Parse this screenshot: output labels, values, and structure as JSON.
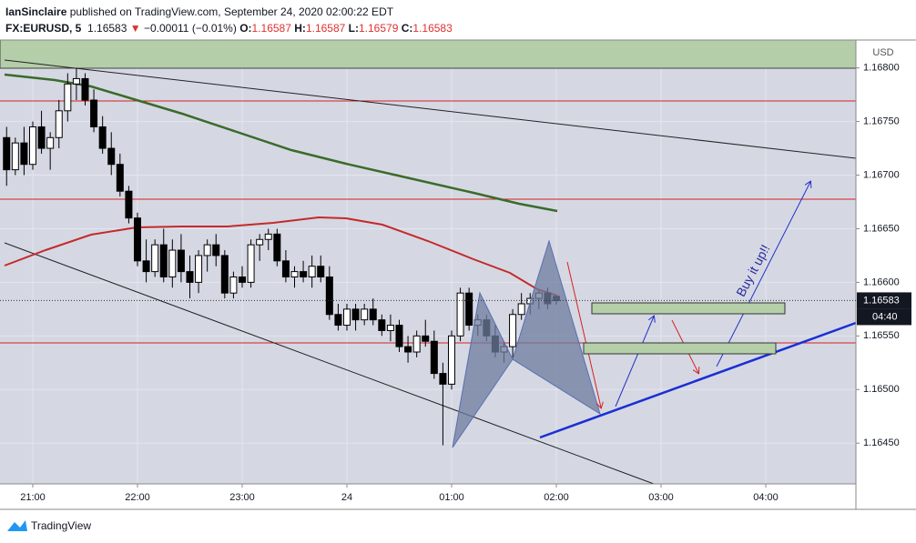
{
  "chart_data": {
    "type": "candlestick",
    "author": "IanSinclaire",
    "subtitle": "published on TradingView.com, September 24, 2020 02:00:22 EDT",
    "symbol": "FX:EURUSD, 5",
    "change_arrow": "▼",
    "change": "−0.00011 (−0.01%)",
    "ohlc_labels": [
      "O:",
      "H:",
      "L:",
      "C:"
    ],
    "currency": "USD",
    "countdown": "04:40",
    "annotation": "Buy it up!!",
    "brand": "TradingView",
    "up_color": "#ffffff",
    "down_color": "#000000",
    "grid": true,
    "x": [
      20.75,
      20.8333,
      20.9167,
      21,
      21.0833,
      21.1667,
      21.25,
      21.3333,
      21.4167,
      21.5,
      21.5833,
      21.6667,
      21.75,
      21.8333,
      21.9167,
      22,
      22.0833,
      22.1667,
      22.25,
      22.3333,
      22.4167,
      22.5,
      22.5833,
      22.6667,
      22.75,
      22.8333,
      22.9167,
      23,
      23.0833,
      23.1667,
      23.25,
      23.3333,
      23.4167,
      23.5,
      23.5833,
      23.6667,
      23.75,
      23.8333,
      23.9167,
      24,
      24.0833,
      24.1667,
      24.25,
      24.3333,
      24.4167,
      24.5,
      24.5833,
      24.6667,
      24.75,
      24.8333,
      24.9167,
      25,
      25.0833,
      25.1667,
      25.25,
      25.3333,
      25.4167,
      25.5,
      25.5833,
      25.6667,
      25.75,
      25.8333,
      25.9167,
      26
    ],
    "open": [
      1.16735,
      1.16705,
      1.1673,
      1.1671,
      1.16745,
      1.16725,
      1.16735,
      1.1676,
      1.16785,
      1.1679,
      1.1677,
      1.16745,
      1.16725,
      1.1671,
      1.16685,
      1.1666,
      1.1662,
      1.1661,
      1.16635,
      1.16605,
      1.1663,
      1.1661,
      1.166,
      1.16625,
      1.16635,
      1.16625,
      1.1659,
      1.16605,
      1.166,
      1.16635,
      1.1664,
      1.16645,
      1.1662,
      1.16605,
      1.1661,
      1.16605,
      1.16615,
      1.16605,
      1.1657,
      1.1656,
      1.16575,
      1.16565,
      1.16575,
      1.16565,
      1.16555,
      1.1656,
      1.1654,
      1.16535,
      1.1655,
      1.16545,
      1.16515,
      1.16505,
      1.1655,
      1.1659,
      1.1656,
      1.16565,
      1.1655,
      1.16535,
      1.1654,
      1.1657,
      1.1658,
      1.16585,
      1.1659,
      1.16587
    ],
    "high": [
      1.16745,
      1.16735,
      1.16745,
      1.1675,
      1.1676,
      1.1674,
      1.1677,
      1.16795,
      1.168,
      1.16795,
      1.1678,
      1.16755,
      1.1674,
      1.1672,
      1.1669,
      1.16665,
      1.1664,
      1.1664,
      1.1665,
      1.1664,
      1.16645,
      1.16625,
      1.1663,
      1.1664,
      1.16645,
      1.1663,
      1.1661,
      1.16615,
      1.1664,
      1.16645,
      1.1665,
      1.1665,
      1.1663,
      1.16615,
      1.1662,
      1.16625,
      1.16625,
      1.16615,
      1.1658,
      1.1658,
      1.1658,
      1.1658,
      1.16585,
      1.1657,
      1.1657,
      1.16565,
      1.1655,
      1.16555,
      1.16565,
      1.16555,
      1.16525,
      1.16555,
      1.16595,
      1.16595,
      1.1657,
      1.1657,
      1.1656,
      1.16545,
      1.16575,
      1.1659,
      1.1659,
      1.16592,
      1.16595,
      1.16587
    ],
    "low": [
      1.1669,
      1.167,
      1.167,
      1.16705,
      1.1672,
      1.16705,
      1.16725,
      1.1675,
      1.1677,
      1.16765,
      1.1674,
      1.1672,
      1.167,
      1.1668,
      1.16655,
      1.16615,
      1.166,
      1.16605,
      1.166,
      1.16595,
      1.166,
      1.16585,
      1.1659,
      1.1661,
      1.16615,
      1.16585,
      1.16585,
      1.16595,
      1.16595,
      1.1662,
      1.1663,
      1.16615,
      1.166,
      1.16595,
      1.166,
      1.16595,
      1.166,
      1.16565,
      1.16555,
      1.16555,
      1.16555,
      1.1656,
      1.1656,
      1.1655,
      1.16545,
      1.16535,
      1.16525,
      1.1653,
      1.1654,
      1.1651,
      1.16448,
      1.165,
      1.16545,
      1.16555,
      1.1655,
      1.16545,
      1.1653,
      1.16525,
      1.1653,
      1.16565,
      1.1657,
      1.16575,
      1.16575,
      1.16579
    ],
    "close": [
      1.16705,
      1.1673,
      1.1671,
      1.16745,
      1.16725,
      1.16735,
      1.1676,
      1.16785,
      1.1679,
      1.1677,
      1.16745,
      1.16725,
      1.1671,
      1.16685,
      1.1666,
      1.1662,
      1.1661,
      1.16635,
      1.16605,
      1.1663,
      1.1661,
      1.166,
      1.16625,
      1.16635,
      1.16625,
      1.1659,
      1.16605,
      1.166,
      1.16635,
      1.1664,
      1.16645,
      1.1662,
      1.16605,
      1.1661,
      1.16605,
      1.16615,
      1.16605,
      1.1657,
      1.1656,
      1.16575,
      1.16565,
      1.16575,
      1.16565,
      1.16555,
      1.1656,
      1.1654,
      1.16535,
      1.1655,
      1.16545,
      1.16515,
      1.16505,
      1.1655,
      1.1659,
      1.1656,
      1.16565,
      1.1655,
      1.16535,
      1.1654,
      1.1657,
      1.1658,
      1.16585,
      1.1659,
      1.1658,
      1.16583
    ],
    "xlim": [
      20.687,
      28.861
    ],
    "xticks": [
      {
        "value": 21,
        "label": "21:00"
      },
      {
        "value": 22,
        "label": "22:00"
      },
      {
        "value": 23,
        "label": "23:00"
      },
      24,
      {
        "value": 25,
        "label": "01:00"
      },
      {
        "value": 26,
        "label": "02:00"
      },
      {
        "value": 27,
        "label": "03:00"
      },
      {
        "value": 28,
        "label": "04:00"
      }
    ],
    "ylim": [
      1.16412,
      1.16826
    ],
    "yticks": [
      {
        "value": 1.168,
        "label": "1.16800"
      },
      {
        "value": 1.1675,
        "label": "1.16750"
      },
      {
        "value": 1.167,
        "label": "1.16700"
      },
      {
        "value": 1.1665,
        "label": "1.16650"
      },
      {
        "value": 1.166,
        "label": "1.16600"
      },
      {
        "value": 1.1655,
        "label": "1.16550"
      },
      {
        "value": 1.165,
        "label": "1.16500"
      },
      {
        "value": 1.1645,
        "label": "1.16450"
      }
    ]
  }
}
